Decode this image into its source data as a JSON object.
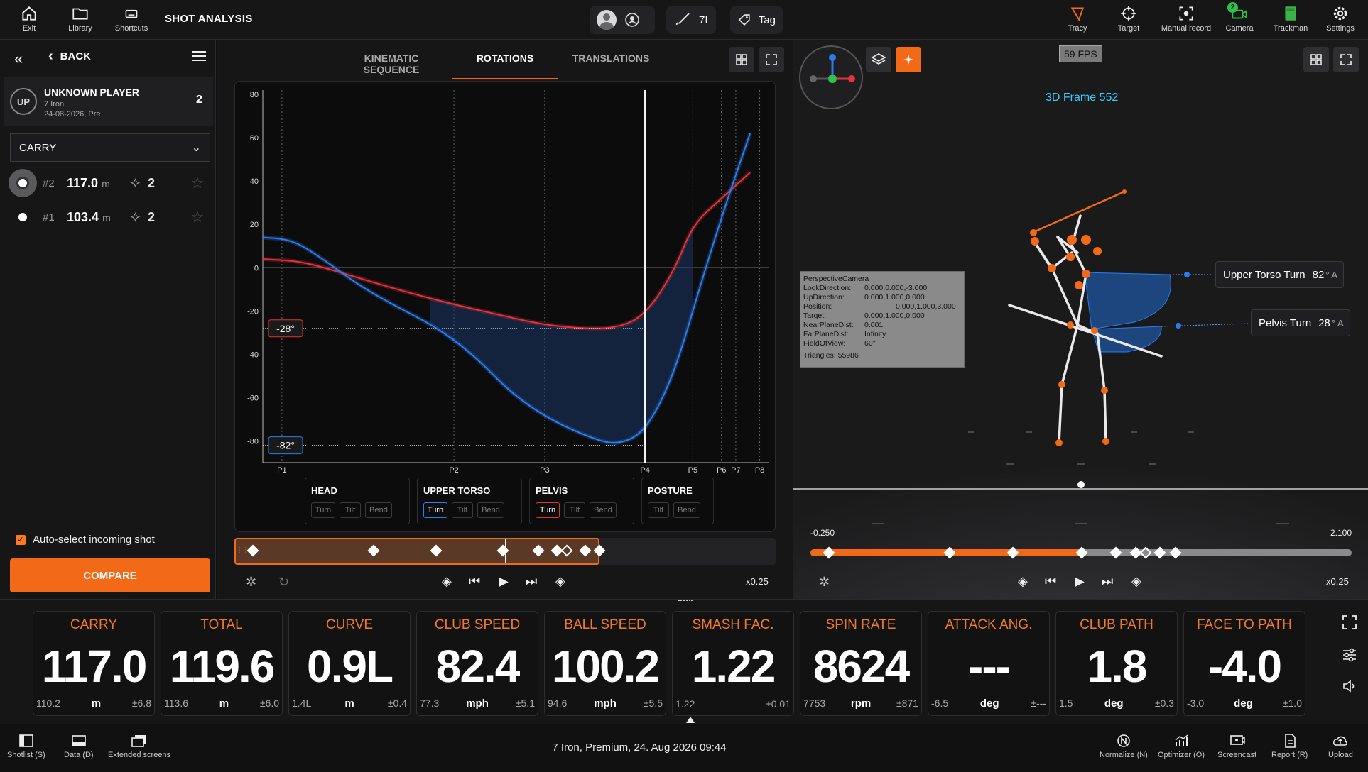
{
  "topbar": {
    "exit": "Exit",
    "library": "Library",
    "shortcuts": "Shortcuts",
    "title": "SHOT ANALYSIS",
    "club": "7I",
    "tag": "Tag",
    "tracy": "Tracy",
    "target": "Target",
    "manual_record": "Manual record",
    "camera": "Camera",
    "camera_badge": "2",
    "trackman": "Trackman",
    "settings": "Settings"
  },
  "left": {
    "back": "BACK",
    "player": {
      "initials": "UP",
      "name": "UNKNOWN PLAYER",
      "club": "7 Iron",
      "date": "24-08-2026, Pre",
      "count": "2"
    },
    "select": "CARRY",
    "shots": [
      {
        "rank": "#2",
        "value": "117.0",
        "unit": "m",
        "stars": "2"
      },
      {
        "rank": "#1",
        "value": "103.4",
        "unit": "m",
        "stars": "2"
      }
    ],
    "auto_select": "Auto-select incoming shot",
    "compare": "COMPARE"
  },
  "chart_tabs": [
    "KINEMATIC SEQUENCE",
    "ROTATIONS",
    "TRANSLATIONS"
  ],
  "chart_data": {
    "type": "line",
    "ylim": [
      -90,
      82
    ],
    "y_ticks": [
      "80",
      "60",
      "40",
      "20",
      "0",
      "-20",
      "-40",
      "-60",
      "-80"
    ],
    "phase_labels": [
      "P1",
      "P2",
      "P3",
      "P4",
      "P5",
      "P6",
      "P7",
      "P8"
    ],
    "phase_x": [
      0.04,
      0.4,
      0.59,
      0.8,
      0.9,
      0.96,
      0.99,
      1.04
    ],
    "markers": [
      "-28°",
      "-82°"
    ],
    "series": [
      {
        "color": "#e2323a",
        "points": [
          [
            0.0,
            4
          ],
          [
            0.08,
            3
          ],
          [
            0.16,
            -2
          ],
          [
            0.25,
            -8
          ],
          [
            0.33,
            -13
          ],
          [
            0.42,
            -18
          ],
          [
            0.5,
            -22
          ],
          [
            0.58,
            -26
          ],
          [
            0.66,
            -28
          ],
          [
            0.74,
            -28
          ],
          [
            0.8,
            -22
          ],
          [
            0.86,
            -2
          ],
          [
            0.9,
            20
          ],
          [
            0.96,
            32
          ],
          [
            1.02,
            44
          ]
        ]
      },
      {
        "color": "#2a7df0",
        "points": [
          [
            0.0,
            14
          ],
          [
            0.06,
            13
          ],
          [
            0.12,
            5
          ],
          [
            0.2,
            -8
          ],
          [
            0.28,
            -18
          ],
          [
            0.36,
            -27
          ],
          [
            0.44,
            -40
          ],
          [
            0.52,
            -58
          ],
          [
            0.6,
            -70
          ],
          [
            0.68,
            -78
          ],
          [
            0.74,
            -82
          ],
          [
            0.8,
            -76
          ],
          [
            0.86,
            -50
          ],
          [
            0.92,
            -5
          ],
          [
            0.97,
            30
          ],
          [
            1.02,
            62
          ]
        ]
      }
    ]
  },
  "segments": [
    {
      "title": "HEAD",
      "buttons": [
        "Turn",
        "Tilt",
        "Bend"
      ]
    },
    {
      "title": "UPPER TORSO",
      "buttons": [
        "Turn",
        "Tilt",
        "Bend"
      ]
    },
    {
      "title": "PELVIS",
      "buttons": [
        "Turn",
        "Tilt",
        "Bend"
      ]
    },
    {
      "title": "POSTURE",
      "buttons": [
        "Tilt",
        "Bend"
      ]
    }
  ],
  "chart_playback": {
    "speed": "x0.25"
  },
  "view": {
    "fps": "59 FPS",
    "frame": "3D Frame 552",
    "camera_info": [
      [
        "PerspectiveCamera",
        ""
      ],
      [
        "LookDirection:",
        "0.000,0.000,-3.000"
      ],
      [
        "UpDirection:",
        "0.000,1.000,0.000"
      ],
      [
        "Position:",
        "0.000,1.000,3.000"
      ],
      [
        "Target:",
        "0.000,1.000,0.000"
      ],
      [
        "NearPlaneDist:",
        "0.001"
      ],
      [
        "FarPlaneDist:",
        "Infinity"
      ],
      [
        "FieldOfView:",
        "60°"
      ]
    ],
    "triangles": "Triangles: 55986",
    "upper_torso": {
      "label": "Upper Torso Turn",
      "value": "82",
      "unit": "° A"
    },
    "pelvis": {
      "label": "Pelvis Turn",
      "value": "28",
      "unit": "° A"
    },
    "timeline": {
      "start": "-0.250",
      "end": "2.100"
    },
    "speed": "x0.25"
  },
  "metrics": [
    {
      "label": "CARRY",
      "value": "117.0",
      "prev": "110.2",
      "unit": "m",
      "dev": "±6.8"
    },
    {
      "label": "TOTAL",
      "value": "119.6",
      "prev": "113.6",
      "unit": "m",
      "dev": "±6.0"
    },
    {
      "label": "CURVE",
      "value": "0.9L",
      "prev": "1.4L",
      "unit": "m",
      "dev": "±0.4"
    },
    {
      "label": "CLUB SPEED",
      "value": "82.4",
      "prev": "77.3",
      "unit": "mph",
      "dev": "±5.1"
    },
    {
      "label": "BALL SPEED",
      "value": "100.2",
      "prev": "94.6",
      "unit": "mph",
      "dev": "±5.5"
    },
    {
      "label": "SMASH FAC.",
      "value": "1.22",
      "prev": "1.22",
      "unit": "",
      "dev": "±0.01"
    },
    {
      "label": "SPIN RATE",
      "value": "8624",
      "prev": "7753",
      "unit": "rpm",
      "dev": "±871"
    },
    {
      "label": "ATTACK ANG.",
      "value": "---",
      "prev": "-6.5",
      "unit": "deg",
      "dev": "±---"
    },
    {
      "label": "CLUB PATH",
      "value": "1.8",
      "prev": "1.5",
      "unit": "deg",
      "dev": "±0.3"
    },
    {
      "label": "FACE TO PATH",
      "value": "-4.0",
      "prev": "-3.0",
      "unit": "deg",
      "dev": "±1.0"
    }
  ],
  "bottombar": {
    "shotlist": "Shotlist (S)",
    "data": "Data (D)",
    "extended": "Extended screens",
    "info": "7 Iron, Premium, 24. Aug 2026 09:44",
    "normalize": "Normalize (N)",
    "optimizer": "Optimizer (O)",
    "screencast": "Screencast",
    "report": "Report (R)",
    "upload": "Upload"
  },
  "colors": {
    "accent": "#f26a18",
    "blue": "#2a7df0",
    "red": "#e2323a",
    "frame": "#3fc9ff"
  }
}
